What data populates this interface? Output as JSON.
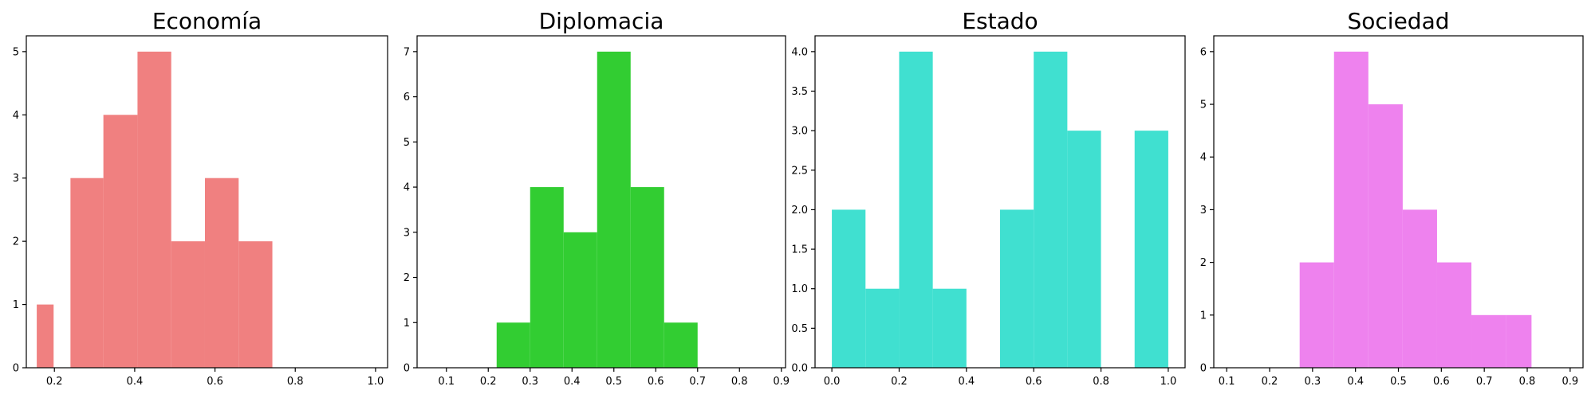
{
  "chart_data": [
    {
      "type": "histogram",
      "title": "Economía",
      "color": "#F08080",
      "bins": [
        {
          "x0": 0.156,
          "x1": 0.198,
          "count": 1
        },
        {
          "x0": 0.198,
          "x1": 0.24,
          "count": 0
        },
        {
          "x0": 0.24,
          "x1": 0.322,
          "count": 3
        },
        {
          "x0": 0.322,
          "x1": 0.407,
          "count": 4
        },
        {
          "x0": 0.407,
          "x1": 0.491,
          "count": 5
        },
        {
          "x0": 0.491,
          "x1": 0.575,
          "count": 2
        },
        {
          "x0": 0.575,
          "x1": 0.659,
          "count": 3
        },
        {
          "x0": 0.659,
          "x1": 0.743,
          "count": 2
        }
      ],
      "xlim": [
        0.13,
        1.03
      ],
      "ylim": [
        0,
        5.25
      ],
      "xticks": [
        0.2,
        0.4,
        0.6,
        0.8,
        1.0
      ],
      "xtick_labels": [
        "0.2",
        "0.4",
        "0.6",
        "0.8",
        "1.0"
      ],
      "yticks": [
        0,
        1,
        2,
        3,
        4,
        5
      ],
      "ytick_labels": [
        "0",
        "1",
        "2",
        "3",
        "4",
        "5"
      ]
    },
    {
      "type": "histogram",
      "title": "Diplomacia",
      "color": "#32CD32",
      "bins": [
        {
          "x0": 0.22,
          "x1": 0.3,
          "count": 1
        },
        {
          "x0": 0.3,
          "x1": 0.38,
          "count": 4
        },
        {
          "x0": 0.38,
          "x1": 0.46,
          "count": 3
        },
        {
          "x0": 0.46,
          "x1": 0.54,
          "count": 7
        },
        {
          "x0": 0.54,
          "x1": 0.62,
          "count": 4
        },
        {
          "x0": 0.62,
          "x1": 0.7,
          "count": 1
        }
      ],
      "xlim": [
        0.03,
        0.91
      ],
      "ylim": [
        0,
        7.35
      ],
      "xticks": [
        0.1,
        0.2,
        0.3,
        0.4,
        0.5,
        0.6,
        0.7,
        0.8,
        0.9
      ],
      "xtick_labels": [
        "0.1",
        "0.2",
        "0.3",
        "0.4",
        "0.5",
        "0.6",
        "0.7",
        "0.8",
        "0.9"
      ],
      "yticks": [
        0,
        1,
        2,
        3,
        4,
        5,
        6,
        7
      ],
      "ytick_labels": [
        "0",
        "1",
        "2",
        "3",
        "4",
        "5",
        "6",
        "7"
      ]
    },
    {
      "type": "histogram",
      "title": "Estado",
      "color": "#40E0D0",
      "bins": [
        {
          "x0": 0.0,
          "x1": 0.1,
          "count": 2
        },
        {
          "x0": 0.1,
          "x1": 0.2,
          "count": 1
        },
        {
          "x0": 0.2,
          "x1": 0.3,
          "count": 4
        },
        {
          "x0": 0.3,
          "x1": 0.4,
          "count": 1
        },
        {
          "x0": 0.4,
          "x1": 0.5,
          "count": 0
        },
        {
          "x0": 0.5,
          "x1": 0.6,
          "count": 2
        },
        {
          "x0": 0.6,
          "x1": 0.7,
          "count": 4
        },
        {
          "x0": 0.7,
          "x1": 0.8,
          "count": 3
        },
        {
          "x0": 0.8,
          "x1": 0.9,
          "count": 0
        },
        {
          "x0": 0.9,
          "x1": 1.0,
          "count": 3
        }
      ],
      "xlim": [
        -0.05,
        1.05
      ],
      "ylim": [
        0,
        4.2
      ],
      "xticks": [
        0.0,
        0.2,
        0.4,
        0.6,
        0.8,
        1.0
      ],
      "xtick_labels": [
        "0.0",
        "0.2",
        "0.4",
        "0.6",
        "0.8",
        "1.0"
      ],
      "yticks": [
        0,
        0.5,
        1.0,
        1.5,
        2.0,
        2.5,
        3.0,
        3.5,
        4.0
      ],
      "ytick_labels": [
        "0.0",
        "0.5",
        "1.0",
        "1.5",
        "2.0",
        "2.5",
        "3.0",
        "3.5",
        "4.0"
      ]
    },
    {
      "type": "histogram",
      "title": "Sociedad",
      "color": "#EE82EE",
      "bins": [
        {
          "x0": 0.27,
          "x1": 0.35,
          "count": 2
        },
        {
          "x0": 0.35,
          "x1": 0.43,
          "count": 6
        },
        {
          "x0": 0.43,
          "x1": 0.51,
          "count": 5
        },
        {
          "x0": 0.51,
          "x1": 0.59,
          "count": 3
        },
        {
          "x0": 0.59,
          "x1": 0.67,
          "count": 2
        },
        {
          "x0": 0.67,
          "x1": 0.75,
          "count": 1
        },
        {
          "x0": 0.75,
          "x1": 0.81,
          "count": 1
        }
      ],
      "xlim": [
        0.07,
        0.93
      ],
      "ylim": [
        0,
        6.3
      ],
      "xticks": [
        0.1,
        0.2,
        0.3,
        0.4,
        0.5,
        0.6,
        0.7,
        0.8,
        0.9
      ],
      "xtick_labels": [
        "0.1",
        "0.2",
        "0.3",
        "0.4",
        "0.5",
        "0.6",
        "0.7",
        "0.8",
        "0.9"
      ],
      "yticks": [
        0,
        1,
        2,
        3,
        4,
        5,
        6
      ],
      "ytick_labels": [
        "0",
        "1",
        "2",
        "3",
        "4",
        "5",
        "6"
      ]
    }
  ]
}
